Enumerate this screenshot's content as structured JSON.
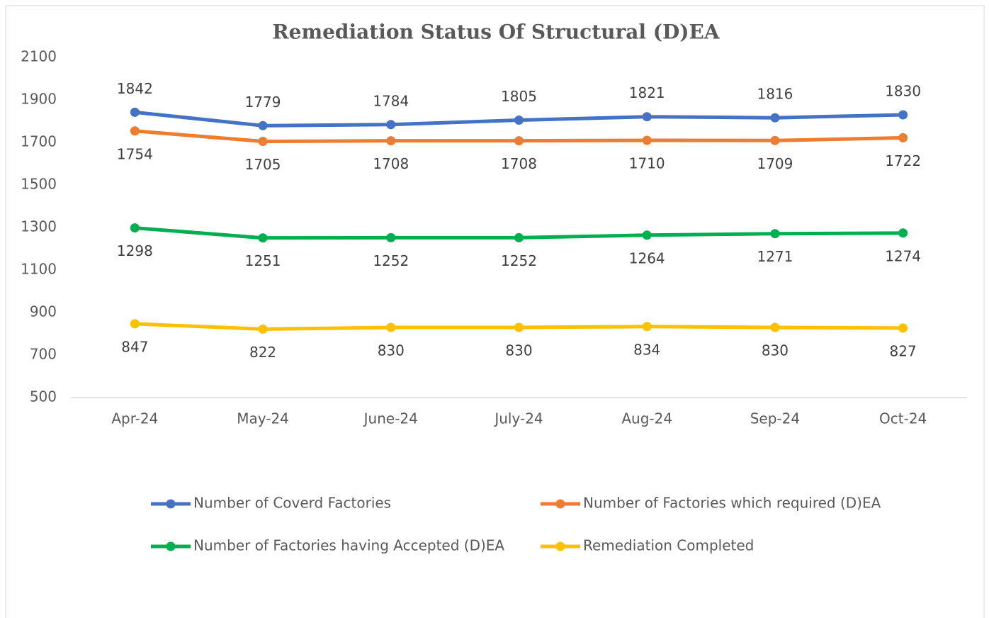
{
  "chart_data": {
    "type": "line",
    "title": "Remediation Status Of Structural (D)EA",
    "categories": [
      "Apr-24",
      "May-24",
      "June-24",
      "July-24",
      "Aug-24",
      "Sep-24",
      "Oct-24"
    ],
    "series": [
      {
        "name": "Number of Coverd Factories",
        "color": "#4472c4",
        "values": [
          1842,
          1779,
          1784,
          1805,
          1821,
          1816,
          1830
        ]
      },
      {
        "name": "Number of Factories which required (D)EA",
        "color": "#ed7d31",
        "values": [
          1754,
          1705,
          1708,
          1708,
          1710,
          1709,
          1722
        ]
      },
      {
        "name": "Number of Factories having Accepted (D)EA",
        "color": "#00b050",
        "values": [
          1298,
          1251,
          1252,
          1252,
          1264,
          1271,
          1274
        ]
      },
      {
        "name": "Remediation Completed",
        "color": "#ffc000",
        "values": [
          847,
          822,
          830,
          830,
          834,
          830,
          827
        ]
      }
    ],
    "ylim": [
      500,
      2100
    ],
    "yticks": [
      500,
      700,
      900,
      1100,
      1300,
      1500,
      1700,
      1900,
      2100
    ],
    "grid": false,
    "legend": "bottom"
  }
}
